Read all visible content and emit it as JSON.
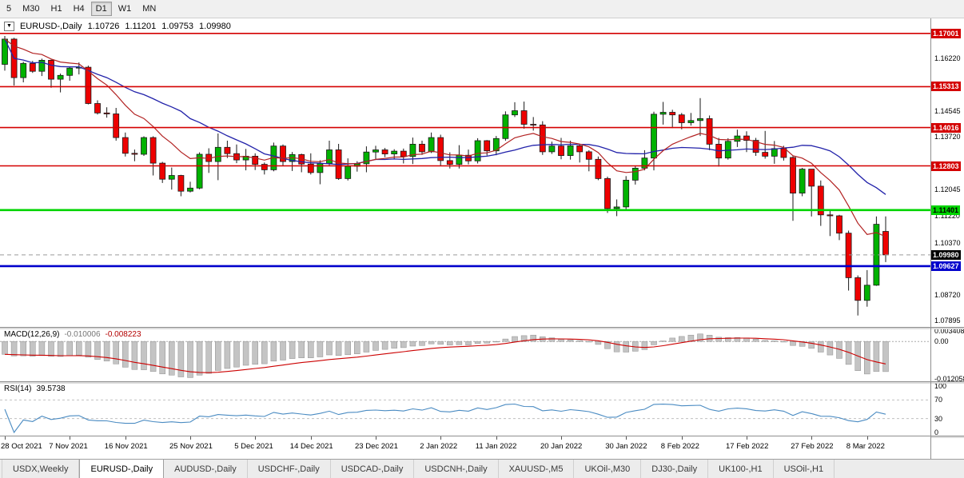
{
  "icons": {
    "dropdown": "▼"
  },
  "colors": {
    "bull": "#00b200",
    "bear": "#ee0000",
    "candle_outline": "#1a1a1a",
    "wick": "#1a1a1a",
    "ma_slow": "#2222aa",
    "ma_fast": "#b22222",
    "macd_hist": "#c4c4c4",
    "macd_signal": "#cc0000",
    "rsi_line": "#4a8bc2"
  },
  "toolbar": {
    "timeframes": [
      {
        "label": "5",
        "active": false
      },
      {
        "label": "M30",
        "active": false
      },
      {
        "label": "H1",
        "active": false
      },
      {
        "label": "H4",
        "active": false
      },
      {
        "label": "D1",
        "active": true
      },
      {
        "label": "W1",
        "active": false
      },
      {
        "label": "MN",
        "active": false
      }
    ]
  },
  "chart_header": {
    "symbol": "EURUSD-,Daily",
    "open": "1.10726",
    "high": "1.11201",
    "low": "1.09753",
    "close": "1.09980"
  },
  "chart_data": {
    "type": "candlestick",
    "symbol": "EURUSD-",
    "timeframe": "Daily",
    "price_range": [
      1.078,
      1.1735
    ],
    "ohlc": [
      [
        1.1602,
        1.1692,
        1.1582,
        1.1682
      ],
      [
        1.1682,
        1.1686,
        1.1535,
        1.156
      ],
      [
        1.156,
        1.161,
        1.1545,
        1.1605
      ],
      [
        1.1605,
        1.1613,
        1.1575,
        1.158
      ],
      [
        1.158,
        1.162,
        1.1565,
        1.1615
      ],
      [
        1.1615,
        1.1617,
        1.1528,
        1.1555
      ],
      [
        1.1555,
        1.1573,
        1.1513,
        1.1567
      ],
      [
        1.1567,
        1.1595,
        1.155,
        1.159
      ],
      [
        1.159,
        1.1608,
        1.157,
        1.1593
      ],
      [
        1.1593,
        1.1598,
        1.1475,
        1.1478
      ],
      [
        1.1478,
        1.1488,
        1.1443,
        1.1448
      ],
      [
        1.1448,
        1.1466,
        1.1433,
        1.1445
      ],
      [
        1.1445,
        1.1464,
        1.136,
        1.137
      ],
      [
        1.137,
        1.1386,
        1.131,
        1.132
      ],
      [
        1.132,
        1.1332,
        1.1295,
        1.1317
      ],
      [
        1.1317,
        1.1374,
        1.1312,
        1.137
      ],
      [
        1.137,
        1.1374,
        1.125,
        1.1289
      ],
      [
        1.1289,
        1.1293,
        1.1226,
        1.1238
      ],
      [
        1.1238,
        1.1275,
        1.1205,
        1.125
      ],
      [
        1.125,
        1.1252,
        1.1184,
        1.12
      ],
      [
        1.12,
        1.123,
        1.1196,
        1.121
      ],
      [
        1.121,
        1.1323,
        1.1206,
        1.1317
      ],
      [
        1.1317,
        1.1336,
        1.1258,
        1.1294
      ],
      [
        1.1294,
        1.1383,
        1.1235,
        1.1339
      ],
      [
        1.1339,
        1.136,
        1.1305,
        1.1319
      ],
      [
        1.1319,
        1.1348,
        1.1289,
        1.1299
      ],
      [
        1.1299,
        1.1334,
        1.1266,
        1.1311
      ],
      [
        1.1311,
        1.132,
        1.1267,
        1.1285
      ],
      [
        1.1285,
        1.1291,
        1.1253,
        1.1268
      ],
      [
        1.1268,
        1.1354,
        1.1263,
        1.1343
      ],
      [
        1.1343,
        1.1348,
        1.128,
        1.1294
      ],
      [
        1.1294,
        1.1324,
        1.1264,
        1.1316
      ],
      [
        1.1316,
        1.1319,
        1.126,
        1.1286
      ],
      [
        1.1286,
        1.132,
        1.1253,
        1.1259
      ],
      [
        1.1259,
        1.1298,
        1.1222,
        1.1288
      ],
      [
        1.1288,
        1.136,
        1.128,
        1.1331
      ],
      [
        1.1331,
        1.135,
        1.1236,
        1.124
      ],
      [
        1.124,
        1.1304,
        1.1234,
        1.1279
      ],
      [
        1.1279,
        1.1295,
        1.1262,
        1.1287
      ],
      [
        1.1287,
        1.1342,
        1.126,
        1.1324
      ],
      [
        1.1324,
        1.1344,
        1.1301,
        1.1331
      ],
      [
        1.1331,
        1.1337,
        1.1308,
        1.1318
      ],
      [
        1.1318,
        1.1333,
        1.1302,
        1.1327
      ],
      [
        1.1327,
        1.1335,
        1.1288,
        1.131
      ],
      [
        1.131,
        1.137,
        1.1286,
        1.1349
      ],
      [
        1.1349,
        1.136,
        1.1315,
        1.1325
      ],
      [
        1.1325,
        1.1386,
        1.1321,
        1.137
      ],
      [
        1.137,
        1.1379,
        1.1279,
        1.1297
      ],
      [
        1.1297,
        1.1323,
        1.1272,
        1.1285
      ],
      [
        1.1285,
        1.1346,
        1.1272,
        1.1314
      ],
      [
        1.1314,
        1.1332,
        1.1285,
        1.1296
      ],
      [
        1.1296,
        1.1368,
        1.1288,
        1.136
      ],
      [
        1.136,
        1.1362,
        1.1313,
        1.1328
      ],
      [
        1.1328,
        1.1375,
        1.1314,
        1.1367
      ],
      [
        1.1367,
        1.1453,
        1.136,
        1.1442
      ],
      [
        1.1442,
        1.1482,
        1.1435,
        1.1455
      ],
      [
        1.1455,
        1.1484,
        1.1398,
        1.1412
      ],
      [
        1.1412,
        1.1435,
        1.1392,
        1.141
      ],
      [
        1.141,
        1.1422,
        1.1315,
        1.1325
      ],
      [
        1.1325,
        1.1357,
        1.1318,
        1.1343
      ],
      [
        1.1343,
        1.1369,
        1.1301,
        1.1313
      ],
      [
        1.1313,
        1.136,
        1.13,
        1.1344
      ],
      [
        1.1344,
        1.1349,
        1.1291,
        1.1325
      ],
      [
        1.1325,
        1.133,
        1.1263,
        1.1301
      ],
      [
        1.1301,
        1.131,
        1.1235,
        1.124
      ],
      [
        1.124,
        1.1246,
        1.1131,
        1.1145
      ],
      [
        1.1145,
        1.1174,
        1.1121,
        1.115
      ],
      [
        1.115,
        1.1248,
        1.1141,
        1.1235
      ],
      [
        1.1235,
        1.1279,
        1.1221,
        1.1273
      ],
      [
        1.1273,
        1.133,
        1.1266,
        1.1305
      ],
      [
        1.1305,
        1.1452,
        1.1266,
        1.1444
      ],
      [
        1.1444,
        1.1483,
        1.1411,
        1.145
      ],
      [
        1.145,
        1.1458,
        1.14,
        1.1442
      ],
      [
        1.1442,
        1.1448,
        1.1396,
        1.1417
      ],
      [
        1.1417,
        1.1448,
        1.1408,
        1.1424
      ],
      [
        1.1424,
        1.1495,
        1.1375,
        1.143
      ],
      [
        1.143,
        1.144,
        1.133,
        1.1349
      ],
      [
        1.1349,
        1.1369,
        1.1278,
        1.1305
      ],
      [
        1.1305,
        1.1368,
        1.13,
        1.1358
      ],
      [
        1.1358,
        1.1395,
        1.134,
        1.1375
      ],
      [
        1.1375,
        1.139,
        1.1324,
        1.1361
      ],
      [
        1.1361,
        1.1369,
        1.1312,
        1.1323
      ],
      [
        1.1323,
        1.1391,
        1.1303,
        1.1311
      ],
      [
        1.1311,
        1.1359,
        1.1287,
        1.1335
      ],
      [
        1.1335,
        1.1344,
        1.1297,
        1.1307
      ],
      [
        1.1307,
        1.1311,
        1.1106,
        1.1194
      ],
      [
        1.1194,
        1.1274,
        1.1184,
        1.127
      ],
      [
        1.127,
        1.127,
        1.112,
        1.1216
      ],
      [
        1.1216,
        1.1234,
        1.109,
        1.1125
      ],
      [
        1.1125,
        1.114,
        1.1058,
        1.1122
      ],
      [
        1.1122,
        1.1125,
        1.1045,
        1.1067
      ],
      [
        1.1067,
        1.1075,
        1.0885,
        1.0926
      ],
      [
        1.0926,
        1.0933,
        1.0806,
        1.0854
      ],
      [
        1.0854,
        1.095,
        1.0834,
        1.0902
      ],
      [
        1.0902,
        1.112,
        1.09,
        1.1095
      ],
      [
        1.10726,
        1.11201,
        1.09753,
        1.0998
      ]
    ],
    "x_labels": [
      {
        "index": 0,
        "text": "28 Oct 2021"
      },
      {
        "index": 7,
        "text": "7 Nov 2021"
      },
      {
        "index": 13,
        "text": "16 Nov 2021"
      },
      {
        "index": 20,
        "text": "25 Nov 2021"
      },
      {
        "index": 27,
        "text": "5 Dec 2021"
      },
      {
        "index": 33,
        "text": "14 Dec 2021"
      },
      {
        "index": 40,
        "text": "23 Dec 2021"
      },
      {
        "index": 47,
        "text": "2 Jan 2022"
      },
      {
        "index": 53,
        "text": "11 Jan 2022"
      },
      {
        "index": 60,
        "text": "20 Jan 2022"
      },
      {
        "index": 67,
        "text": "30 Jan 2022"
      },
      {
        "index": 73,
        "text": "8 Feb 2022"
      },
      {
        "index": 80,
        "text": "17 Feb 2022"
      },
      {
        "index": 87,
        "text": "27 Feb 2022"
      },
      {
        "index": 93,
        "text": "8 Mar 2022"
      }
    ],
    "y_axis_labels": [
      {
        "text": "1.16220",
        "price": 1.1622
      },
      {
        "text": "1.14545",
        "price": 1.14545
      },
      {
        "text": "1.13720",
        "price": 1.1372
      },
      {
        "text": "1.12045",
        "price": 1.12045
      },
      {
        "text": "1.11220",
        "price": 1.1122
      },
      {
        "text": "1.10370",
        "price": 1.1037
      },
      {
        "text": "1.08720",
        "price": 1.0872
      },
      {
        "text": "1.07895",
        "price": 1.07895
      }
    ],
    "hlines": [
      {
        "price": 1.17001,
        "label": "1.17001",
        "color": "#d40000",
        "text_color": "#ffffff",
        "width": 1.6
      },
      {
        "price": 1.15313,
        "label": "1.15313",
        "color": "#d40000",
        "text_color": "#ffffff",
        "width": 1.6
      },
      {
        "price": 1.14016,
        "label": "1.14016",
        "color": "#d40000",
        "text_color": "#ffffff",
        "width": 1.6
      },
      {
        "price": 1.12803,
        "label": "1.12803",
        "color": "#d40000",
        "text_color": "#ffffff",
        "width": 1.6
      },
      {
        "price": 1.11401,
        "label": "1.11401",
        "color": "#00d400",
        "text_color": "#000000",
        "width": 2.6
      },
      {
        "price": 1.09627,
        "label": "1.09627",
        "color": "#0000cc",
        "text_color": "#ffffff",
        "width": 2.6
      }
    ],
    "current_price": {
      "price": 1.0998,
      "label": "1.09980",
      "box_color": "#000000",
      "text_color": "#ffffff"
    },
    "overlays": [
      {
        "name": "ma-slow",
        "method": "sma",
        "period": 20
      },
      {
        "name": "ma-fast",
        "method": "ema",
        "period": 10
      }
    ],
    "indicators": {
      "macd": {
        "label": "MACD(12,26,9)",
        "fast": 12,
        "slow": 26,
        "signal": 9,
        "value_main": "-0.010006",
        "value_signal": "-0.008223",
        "scale_top": "0.003408",
        "scale_zero": "0.00",
        "scale_bottom": "-0.012058",
        "scale_top_value": 0.003408,
        "scale_bottom_value": -0.012058
      },
      "rsi": {
        "label": "RSI(14)",
        "period": 14,
        "value": "39.5738",
        "levels": [
          70,
          30
        ],
        "scale_labels": [
          {
            "text": "100",
            "value": 100
          },
          {
            "text": "70",
            "value": 70
          },
          {
            "text": "30",
            "value": 30
          },
          {
            "text": "0",
            "value": 0
          }
        ]
      }
    }
  },
  "tabs": [
    {
      "label": "USDX,Weekly",
      "active": false
    },
    {
      "label": "EURUSD-,Daily",
      "active": true
    },
    {
      "label": "AUDUSD-,Daily",
      "active": false
    },
    {
      "label": "USDCHF-,Daily",
      "active": false
    },
    {
      "label": "USDCAD-,Daily",
      "active": false
    },
    {
      "label": "USDCNH-,Daily",
      "active": false
    },
    {
      "label": "XAUUSD-,M5",
      "active": false
    },
    {
      "label": "UKOil-,M30",
      "active": false
    },
    {
      "label": "DJ30-,Daily",
      "active": false
    },
    {
      "label": "UK100-,H1",
      "active": false
    },
    {
      "label": "USOil-,H1",
      "active": false
    }
  ]
}
